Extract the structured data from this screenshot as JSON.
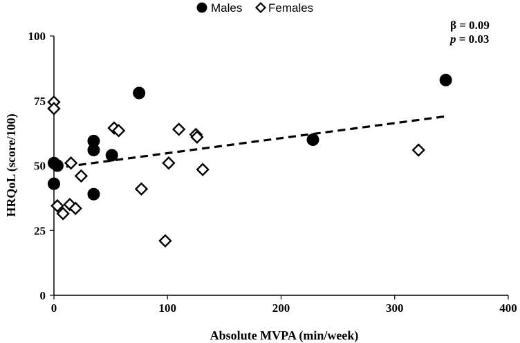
{
  "chart_data": {
    "type": "scatter",
    "xlabel": "Absolute MVPA (min/week)",
    "ylabel": "HRQoL (score/100)",
    "xlim": [
      0,
      400
    ],
    "ylim": [
      0,
      100
    ],
    "x_ticks": [
      "0",
      "100",
      "200",
      "300",
      "400"
    ],
    "y_ticks": [
      "0",
      "25",
      "50",
      "75",
      "100"
    ],
    "legend_position": "top-center",
    "grid": false,
    "series": [
      {
        "name": "Males",
        "marker": "filled-circle",
        "color": "#000000",
        "points": [
          {
            "x": 0,
            "y": 51
          },
          {
            "x": 0,
            "y": 43
          },
          {
            "x": 3,
            "y": 50
          },
          {
            "x": 35,
            "y": 56
          },
          {
            "x": 35,
            "y": 59.5
          },
          {
            "x": 35,
            "y": 39
          },
          {
            "x": 51,
            "y": 54
          },
          {
            "x": 75,
            "y": 78
          },
          {
            "x": 228,
            "y": 60
          },
          {
            "x": 345,
            "y": 83
          }
        ]
      },
      {
        "name": "Females",
        "marker": "open-diamond",
        "color": "#000000",
        "points": [
          {
            "x": 0,
            "y": 74.5
          },
          {
            "x": 0,
            "y": 72
          },
          {
            "x": 3,
            "y": 34.5
          },
          {
            "x": 8,
            "y": 31.5
          },
          {
            "x": 14,
            "y": 35
          },
          {
            "x": 15,
            "y": 51
          },
          {
            "x": 19,
            "y": 33.5
          },
          {
            "x": 24,
            "y": 46
          },
          {
            "x": 53,
            "y": 64.5
          },
          {
            "x": 57,
            "y": 63.5
          },
          {
            "x": 77,
            "y": 41
          },
          {
            "x": 98,
            "y": 21
          },
          {
            "x": 101,
            "y": 51
          },
          {
            "x": 110,
            "y": 64
          },
          {
            "x": 125,
            "y": 62
          },
          {
            "x": 126,
            "y": 61
          },
          {
            "x": 131,
            "y": 48.5
          },
          {
            "x": 321,
            "y": 56
          }
        ]
      }
    ],
    "trendline": {
      "style": "dashed",
      "from": {
        "x": 0,
        "y": 49
      },
      "to": {
        "x": 345,
        "y": 69
      }
    },
    "annotations": {
      "beta_line": "β = 0.09",
      "p_symbol": "p",
      "p_rest": " = 0.03"
    }
  }
}
